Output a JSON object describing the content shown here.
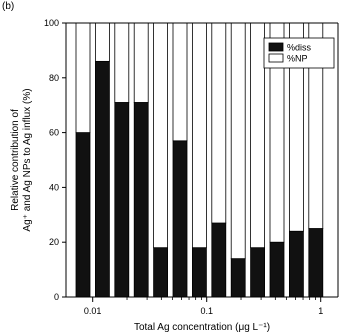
{
  "panel_label": "(b)",
  "colors": {
    "dissolved": "#111111",
    "nanoparticle": "#ffffff",
    "axis": "#000000"
  },
  "chart_data": {
    "type": "bar",
    "stacked": true,
    "xlabel": "Total Ag concentration (μg L⁻¹)",
    "xscale": "log",
    "x_ticks": [
      {
        "value": 0.01,
        "label": "0.01"
      },
      {
        "value": 0.1,
        "label": "0.1"
      },
      {
        "value": 1,
        "label": "1"
      }
    ],
    "ylabel_line1": "Relative contribution of",
    "ylabel_line2": "Ag⁺ and Ag NPs to Ag influx (%)",
    "ylim": [
      0,
      100
    ],
    "y_ticks": [
      0,
      20,
      40,
      60,
      80,
      100
    ],
    "series": [
      {
        "name": "%diss",
        "color": "#111111",
        "values": [
          60,
          86,
          71,
          71,
          18,
          57,
          18,
          27,
          14,
          18,
          20,
          24,
          25
        ]
      },
      {
        "name": "%NP",
        "color": "#ffffff",
        "values": [
          40,
          14,
          29,
          29,
          82,
          43,
          82,
          73,
          86,
          82,
          80,
          76,
          75
        ]
      }
    ],
    "legend": {
      "placement": "top-right",
      "entries": [
        "%diss",
        "%NP"
      ]
    },
    "grid": false
  }
}
